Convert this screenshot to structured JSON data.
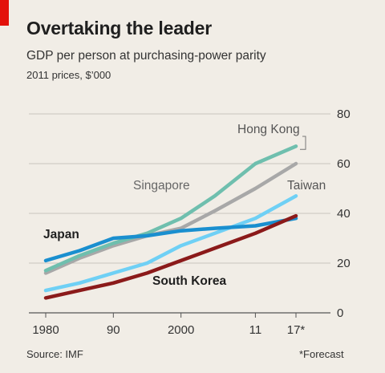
{
  "header": {
    "title": "Overtaking the leader",
    "subtitle": "GDP per person at purchasing-power parity",
    "units": "2011 prices, $’000"
  },
  "footer": {
    "source": "Source: IMF",
    "footnote": "*Forecast"
  },
  "colors": {
    "background": "#f1ede6",
    "accent": "#e3120b",
    "grid": "#c9c5be",
    "axis": "#555555"
  },
  "chart_data": {
    "type": "line",
    "title": "Overtaking the leader",
    "subtitle": "GDP per person at purchasing-power parity",
    "ylabel": "2011 prices, $’000",
    "ylim": [
      0,
      80
    ],
    "yticks": [
      0,
      20,
      40,
      60,
      80
    ],
    "xlim": [
      1980,
      2017
    ],
    "xticks": [
      1980,
      1990,
      2000,
      2011,
      2017
    ],
    "xtick_labels": [
      "1980",
      "90",
      "2000",
      "11",
      "17*"
    ],
    "grid": true,
    "y_axis_side": "right",
    "series": [
      {
        "name": "Hong Kong",
        "color": "#6fbfae",
        "x": [
          1980,
          1985,
          1990,
          1995,
          2000,
          2005,
          2011,
          2017
        ],
        "values": [
          17,
          23,
          28,
          32,
          38,
          47,
          60,
          67
        ]
      },
      {
        "name": "Singapore",
        "color": "#a8a8a8",
        "x": [
          1980,
          1985,
          1990,
          1995,
          2000,
          2005,
          2011,
          2017
        ],
        "values": [
          16,
          22,
          27,
          31,
          34,
          41,
          50,
          60
        ]
      },
      {
        "name": "Taiwan",
        "color": "#6fd0f5",
        "x": [
          1980,
          1985,
          1990,
          1995,
          2000,
          2005,
          2011,
          2017
        ],
        "values": [
          9,
          12,
          16,
          20,
          27,
          32,
          38,
          47
        ]
      },
      {
        "name": "Japan",
        "color": "#1a8fcf",
        "x": [
          1980,
          1985,
          1990,
          1995,
          2000,
          2005,
          2011,
          2017
        ],
        "values": [
          21,
          25,
          30,
          31,
          33,
          34,
          35,
          38
        ]
      },
      {
        "name": "South Korea",
        "color": "#8b1a1a",
        "x": [
          1980,
          1985,
          1990,
          1995,
          2000,
          2005,
          2011,
          2017
        ],
        "values": [
          6,
          9,
          12,
          16,
          21,
          26,
          32,
          39
        ]
      }
    ]
  }
}
